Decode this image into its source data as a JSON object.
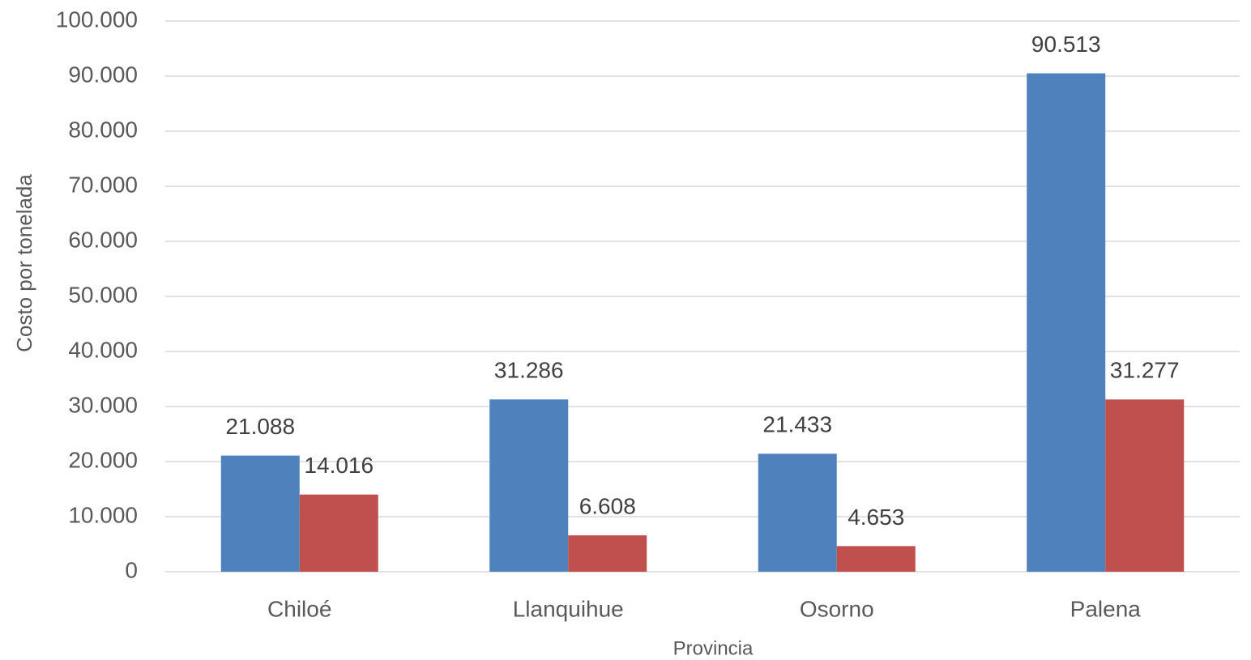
{
  "chart_data": {
    "type": "bar",
    "categories": [
      "Chiloé",
      "Llanquihue",
      "Osorno",
      "Palena"
    ],
    "series": [
      {
        "color": "#4f81bd",
        "values": [
          21088,
          31286,
          21433,
          90513
        ],
        "value_labels": [
          "21.088",
          "31.286",
          "21.433",
          "90.513"
        ]
      },
      {
        "color": "#c0504d",
        "values": [
          14016,
          6608,
          4653,
          31277
        ],
        "value_labels": [
          "14.016",
          "6.608",
          "4.653",
          "31.277"
        ]
      }
    ],
    "xlabel": "Provincia",
    "ylabel": "Costo por tonelada",
    "ylim": [
      0,
      100000
    ],
    "yticks": [
      0,
      {
        "value": 10000,
        "label": "10.000"
      },
      {
        "value": 20000,
        "label": "20.000"
      },
      {
        "value": 30000,
        "label": "30.000"
      },
      {
        "value": 40000,
        "label": "40.000"
      },
      {
        "value": 50000,
        "label": "50.000"
      },
      {
        "value": 60000,
        "label": "60.000"
      },
      {
        "value": 70000,
        "label": "70.000"
      },
      {
        "value": 80000,
        "label": "80.000"
      },
      {
        "value": 90000,
        "label": "90.000"
      },
      {
        "value": 100000,
        "label": "100.000"
      }
    ],
    "grid": true
  }
}
